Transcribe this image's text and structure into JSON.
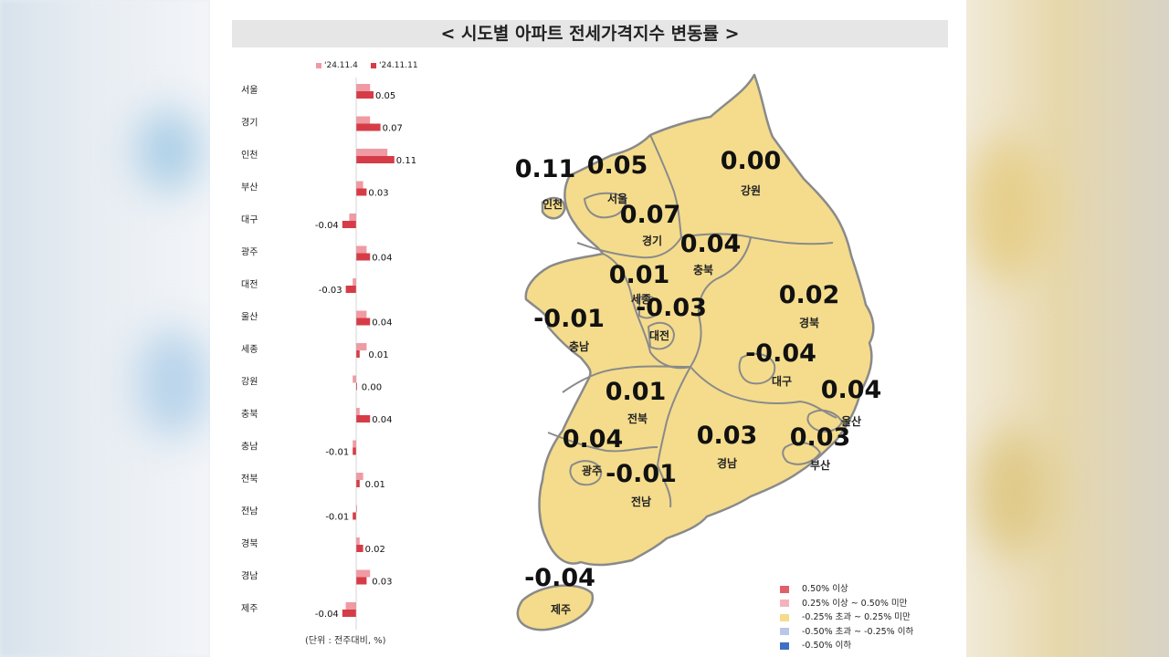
{
  "title": "< 시도별 아파트 전세가격지수 변동률 >",
  "legend_series": [
    {
      "label": "'24.11.4",
      "color": "#f09aa3"
    },
    {
      "label": "'24.11.11",
      "color": "#d63c47"
    }
  ],
  "unit_note": "(단위 : 전주대비, %)",
  "chart_data": {
    "type": "bar",
    "orientation": "horizontal",
    "categories": [
      "서울",
      "경기",
      "인천",
      "부산",
      "대구",
      "광주",
      "대전",
      "울산",
      "세종",
      "강원",
      "충북",
      "충남",
      "전북",
      "전남",
      "경북",
      "경남",
      "제주"
    ],
    "series": [
      {
        "name": "'24.11.4",
        "values": [
          0.04,
          0.04,
          0.09,
          0.02,
          -0.02,
          0.03,
          -0.01,
          0.03,
          0.03,
          -0.01,
          0.01,
          -0.01,
          0.02,
          0.0,
          0.01,
          0.04,
          -0.03
        ]
      },
      {
        "name": "'24.11.11",
        "values": [
          0.05,
          0.07,
          0.11,
          0.03,
          -0.04,
          0.04,
          -0.03,
          0.04,
          0.01,
          0.0,
          0.04,
          -0.01,
          0.01,
          -0.01,
          0.02,
          0.03,
          -0.04
        ]
      }
    ],
    "value_labels": [
      "0.05",
      "0.07",
      "0.11",
      "0.03",
      "-0.04",
      "0.04",
      "-0.03",
      "0.04",
      "0.01",
      "0.00",
      "0.04",
      "-0.01",
      "0.01",
      "-0.01",
      "0.02",
      "0.03",
      "-0.04"
    ]
  },
  "map_labels": [
    {
      "region": "인천",
      "value": "0.11"
    },
    {
      "region": "서울",
      "value": "0.05"
    },
    {
      "region": "강원",
      "value": "0.00"
    },
    {
      "region": "경기",
      "value": "0.07"
    },
    {
      "region": "충북",
      "value": "0.04"
    },
    {
      "region": "세종",
      "value": "0.01"
    },
    {
      "region": "대전",
      "value": "-0.03"
    },
    {
      "region": "충남",
      "value": "-0.01"
    },
    {
      "region": "경북",
      "value": "0.02"
    },
    {
      "region": "대구",
      "value": "-0.04"
    },
    {
      "region": "울산",
      "value": "0.04"
    },
    {
      "region": "전북",
      "value": "0.01"
    },
    {
      "region": "경남",
      "value": "0.03"
    },
    {
      "region": "부산",
      "value": "0.03"
    },
    {
      "region": "광주",
      "value": "0.04"
    },
    {
      "region": "전남",
      "value": "-0.01"
    },
    {
      "region": "제주",
      "value": "-0.04"
    }
  ],
  "map_legend": [
    {
      "label": "0.50% 이상",
      "color": "#e0606a"
    },
    {
      "label": "0.25% 이상 ~ 0.50% 미만",
      "color": "#f4b3ba"
    },
    {
      "label": "-0.25% 초과 ~ 0.25% 미만",
      "color": "#f4dc8c"
    },
    {
      "label": "-0.50% 초과 ~ -0.25% 이하",
      "color": "#b9c8e8"
    },
    {
      "label": "-0.50% 이하",
      "color": "#3f6fc4"
    }
  ],
  "map_fill_color": "#f4dc8c"
}
